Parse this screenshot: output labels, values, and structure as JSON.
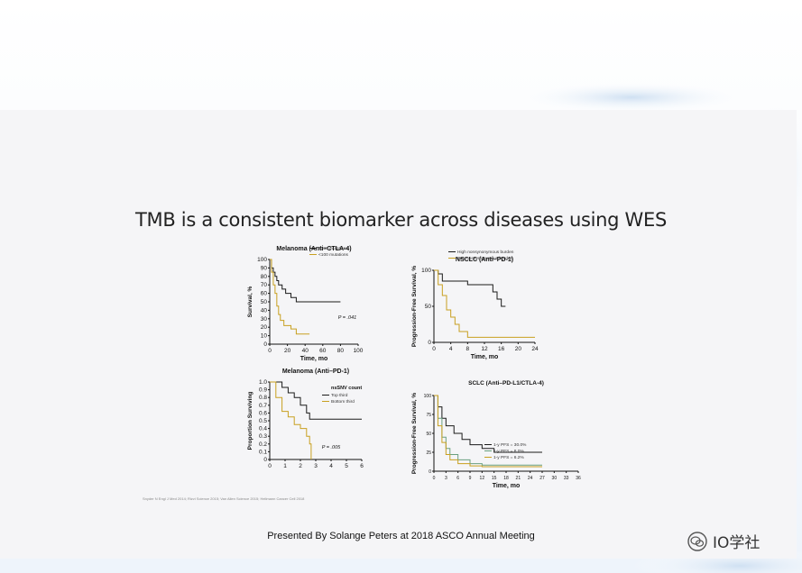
{
  "slide": {
    "title": "TMB is a consistent biomarker across diseases using WES",
    "reference": "Snyder N Engl J Med 2014; Rizvi Science 2015; Van Allen Science 2015; Hellmann Cancer Cell 2018",
    "footer": "Presented By Solange Peters at 2018 ASCO Annual Meeting"
  },
  "watermark": {
    "text": "IO学社",
    "icon": "wechat-icon"
  },
  "colors": {
    "dark": "#1a1a1a",
    "gold": "#c8a020",
    "green": "#6aa080"
  },
  "chart_data": [
    {
      "type": "line",
      "title": "Melanoma (Anti–CTLA-4)",
      "xlabel": "Time, mo",
      "ylabel": "Survival, %",
      "xticks": [
        "0",
        "20",
        "40",
        "60",
        "80",
        "100"
      ],
      "yticks": [
        "100",
        "90",
        "80",
        "70",
        "60",
        "50",
        "40",
        "30",
        "20",
        "10",
        "0"
      ],
      "xlim": [
        0,
        100
      ],
      "ylim": [
        0,
        100
      ],
      "legend": [
        "≥100 mutations",
        "<100 mutations"
      ],
      "annotation": "P = .041",
      "series": [
        {
          "name": "≥100 mutations",
          "color": "#1a1a1a",
          "x": [
            0,
            2,
            4,
            6,
            8,
            10,
            14,
            18,
            24,
            30,
            50,
            80
          ],
          "y": [
            100,
            90,
            85,
            80,
            75,
            70,
            65,
            60,
            55,
            50,
            50,
            50
          ]
        },
        {
          "name": "<100 mutations",
          "color": "#c8a020",
          "x": [
            0,
            2,
            4,
            6,
            8,
            10,
            12,
            16,
            24,
            30,
            45
          ],
          "y": [
            100,
            85,
            70,
            60,
            45,
            35,
            28,
            22,
            18,
            12,
            12
          ]
        }
      ]
    },
    {
      "type": "line",
      "title": "NSCLC (Anti–PD-1)",
      "xlabel": "Time, mo",
      "ylabel": "Progression-Free Survival, %",
      "xticks": [
        "0",
        "4",
        "8",
        "12",
        "16",
        "20",
        "24"
      ],
      "yticks": [
        "100",
        "50",
        "0"
      ],
      "xlim": [
        0,
        24
      ],
      "ylim": [
        0,
        100
      ],
      "legend": [
        "High nonsynonymous burden",
        "Low nonsynonymous burden"
      ],
      "series": [
        {
          "name": "High nonsynonymous burden",
          "color": "#1a1a1a",
          "x": [
            0,
            1,
            2,
            4,
            8,
            12,
            14,
            15,
            16,
            17
          ],
          "y": [
            100,
            95,
            85,
            85,
            80,
            80,
            70,
            60,
            50,
            50
          ]
        },
        {
          "name": "Low nonsynonymous burden",
          "color": "#c8a020",
          "x": [
            0,
            1,
            2,
            3,
            4,
            5,
            6,
            8,
            10,
            24
          ],
          "y": [
            100,
            80,
            65,
            45,
            35,
            25,
            15,
            7,
            7,
            7
          ]
        }
      ]
    },
    {
      "type": "line",
      "title": "Melanoma (Anti–PD-1)",
      "xlabel": "Time, y",
      "ylabel": "Proportion Surviving",
      "xticks": [
        "0",
        "1",
        "2",
        "3",
        "4",
        "5",
        "6"
      ],
      "yticks": [
        "1.0",
        "0.9",
        "0.8",
        "0.7",
        "0.6",
        "0.5",
        "0.4",
        "0.3",
        "0.2",
        "0.1",
        "0"
      ],
      "xlim": [
        0,
        6
      ],
      "ylim": [
        0,
        1
      ],
      "legend_title": "nsSNV count",
      "legend": [
        "Top third",
        "Bottom third"
      ],
      "annotation": "P = .005",
      "series": [
        {
          "name": "Top third",
          "color": "#1a1a1a",
          "x": [
            0,
            0.3,
            0.8,
            1.2,
            1.6,
            2.0,
            2.4,
            2.6,
            6
          ],
          "y": [
            1.0,
            1.0,
            0.93,
            0.86,
            0.8,
            0.7,
            0.6,
            0.52,
            0.52
          ]
        },
        {
          "name": "Bottom third",
          "color": "#c8a020",
          "x": [
            0,
            0.4,
            0.8,
            1.2,
            1.6,
            2.0,
            2.4,
            2.6,
            2.7
          ],
          "y": [
            1.0,
            0.8,
            0.62,
            0.55,
            0.45,
            0.4,
            0.3,
            0.2,
            0.0
          ]
        }
      ]
    },
    {
      "type": "line",
      "title": "SCLC (Anti–PD-L1/CTLA-4)",
      "xlabel": "Time, mo",
      "ylabel": "Progression-Free Survival, %",
      "xticks": [
        "0",
        "3",
        "6",
        "9",
        "12",
        "15",
        "18",
        "21",
        "24",
        "27",
        "30",
        "33",
        "36"
      ],
      "yticks": [
        "100",
        "75",
        "50",
        "25",
        "0"
      ],
      "xlim": [
        0,
        36
      ],
      "ylim": [
        0,
        100
      ],
      "legend": [
        "1-y PFS = 30.0%",
        "1-y PFS = 8.0%",
        "1-y PFS = 6.2%"
      ],
      "series": [
        {
          "name": "1-y PFS = 30.0%",
          "color": "#1a1a1a",
          "x": [
            0,
            1,
            2,
            3,
            5,
            7,
            9,
            12,
            15,
            27
          ],
          "y": [
            100,
            85,
            70,
            60,
            50,
            42,
            35,
            30,
            25,
            25
          ]
        },
        {
          "name": "1-y PFS = 8.0%",
          "color": "#6aa080",
          "x": [
            0,
            1,
            2,
            3,
            4,
            6,
            9,
            12,
            18,
            27
          ],
          "y": [
            100,
            70,
            45,
            30,
            22,
            15,
            10,
            8,
            8,
            8
          ]
        },
        {
          "name": "1-y PFS = 6.2%",
          "color": "#c8a020",
          "x": [
            0,
            1,
            2,
            3,
            4,
            6,
            9,
            12,
            18,
            27
          ],
          "y": [
            100,
            60,
            38,
            22,
            15,
            10,
            7,
            6,
            6,
            6
          ]
        }
      ]
    }
  ]
}
